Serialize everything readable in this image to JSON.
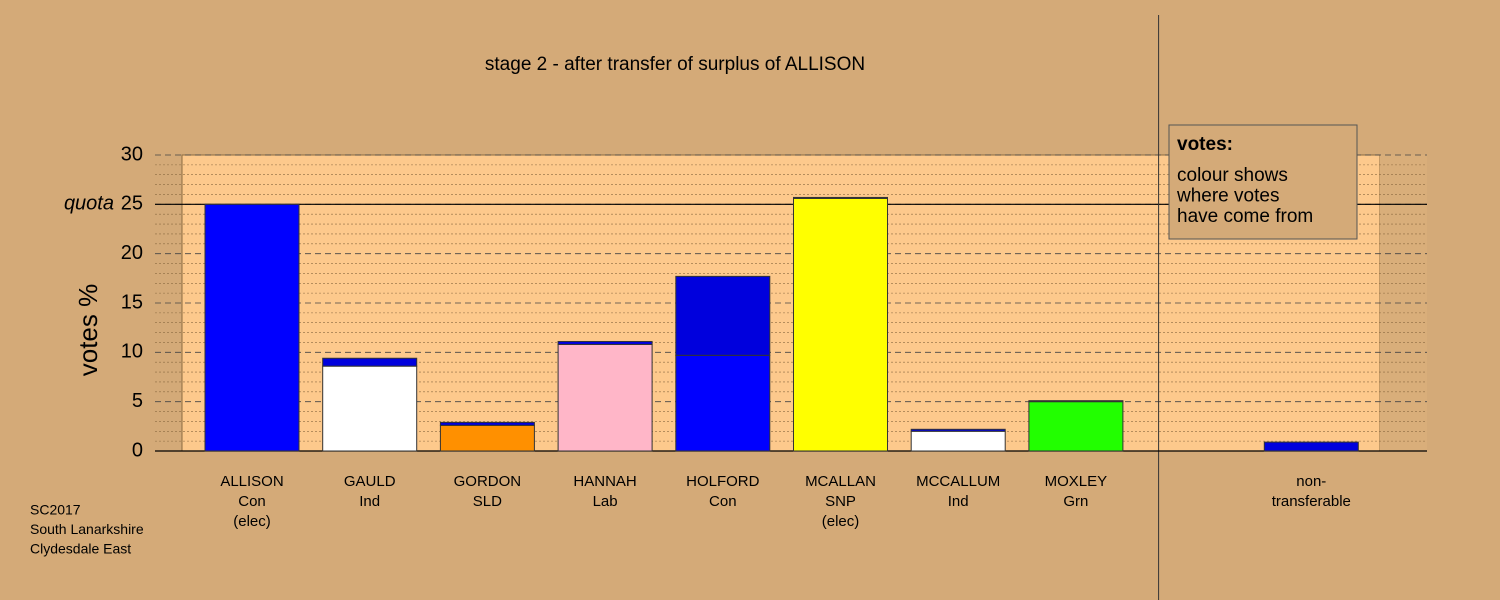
{
  "chart_data": {
    "type": "bar",
    "title": "stage 2 - after transfer of surplus of ALLISON",
    "y_label": "votes %",
    "labels": [
      [
        "ALLISON",
        "Con",
        "(elec)"
      ],
      [
        "GAULD",
        "Ind"
      ],
      [
        "GORDON",
        "SLD"
      ],
      [
        "HANNAH",
        "Lab"
      ],
      [
        "HOLFORD",
        "Con"
      ],
      [
        "MCALLAN",
        "SNP",
        "(elec)"
      ],
      [
        "MCCALLUM",
        "Ind"
      ],
      [
        "MOXLEY",
        "Grn"
      ],
      [
        "non-",
        "transferable"
      ]
    ],
    "values": [
      25,
      8.6,
      2.6,
      10.8,
      9.7,
      25.6,
      2.0,
      5.0,
      null
    ],
    "colors": [
      "#0000ff",
      "#ffffff",
      "#ff9000",
      "#ffb6c8",
      "#0000ff",
      "#ffff00",
      "#ffffff",
      "#22ff00",
      "#0000ff"
    ],
    "transfer_values": [
      null,
      0.8,
      0.3,
      0.3,
      8.0,
      0.1,
      0.2,
      0.1,
      0.9
    ],
    "transfer_color": "#0000dd",
    "ylim": [
      0,
      30
    ],
    "yticks": [
      0,
      5,
      10,
      15,
      20,
      25,
      30
    ],
    "minor_yticks": [
      1,
      2,
      3,
      4,
      6,
      7,
      8,
      9,
      11,
      12,
      13,
      14,
      16,
      17,
      18,
      19,
      21,
      22,
      23,
      24,
      26,
      27,
      28,
      29
    ],
    "quota": 25,
    "quota_label": "quota",
    "legend": {
      "title": "votes:",
      "lines": [
        "colour shows",
        "where votes",
        "have come from"
      ]
    },
    "notes": [
      "SC2017",
      "South Lanarkshire",
      "Clydesdale East"
    ]
  }
}
